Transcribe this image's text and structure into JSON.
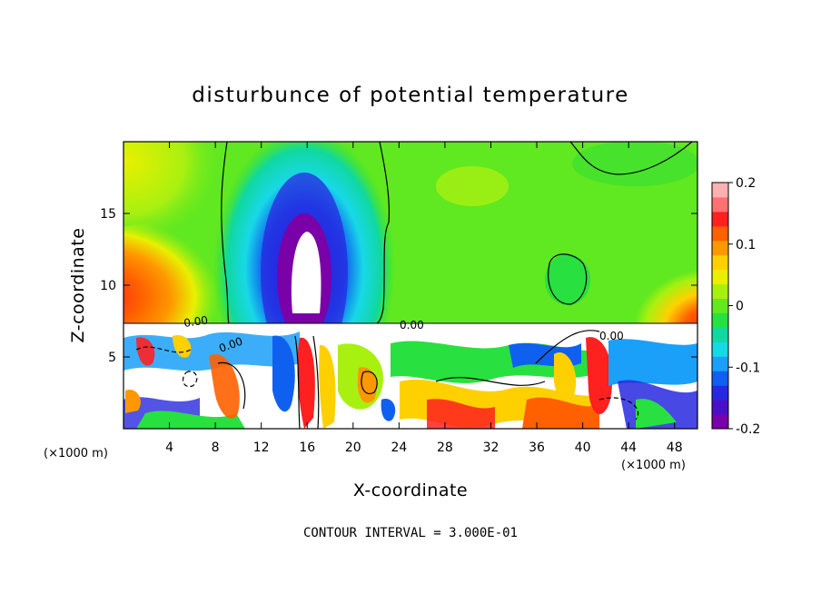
{
  "chart_data": {
    "type": "heatmap",
    "title": "disturbunce of potential temperature",
    "xlabel": "X-coordinate",
    "ylabel": "Z-coordinate",
    "x_unit_left": "(×1000 m)",
    "x_unit_right": "(×1000 m)",
    "xlim": [
      0,
      50
    ],
    "ylim": [
      0,
      20
    ],
    "x_ticks": [
      "4",
      "8",
      "12",
      "16",
      "20",
      "24",
      "28",
      "32",
      "36",
      "40",
      "44",
      "48"
    ],
    "y_ticks": [
      "5",
      "10",
      "15"
    ],
    "colorbar": {
      "range": [
        -0.2,
        0.2
      ],
      "tick_labels": [
        "0.2",
        "0.1",
        "0",
        "-0.1",
        "-0.2"
      ],
      "colors": [
        "#7a00a8",
        "#4a10c8",
        "#2828e0",
        "#1060f0",
        "#1aa0f8",
        "#18d8e8",
        "#10d8a0",
        "#28e040",
        "#60e820",
        "#a8f010",
        "#e8f000",
        "#ffd000",
        "#ff9800",
        "#ff6000",
        "#ff2020",
        "#ff7070",
        "#ffb0b0"
      ]
    },
    "contour_labels": [
      "0.00",
      "0.00",
      "0.00",
      "0.00"
    ],
    "features": [
      {
        "name": "cold-anomaly-column",
        "x_center": 16,
        "z_range": [
          7.5,
          20
        ],
        "value": -0.2
      },
      {
        "name": "warm-anomaly-left",
        "x_range": [
          0,
          8
        ],
        "z_range": [
          8,
          13
        ],
        "value": 0.15
      },
      {
        "name": "warm-anomaly-right",
        "x_range": [
          44,
          50
        ],
        "z_range": [
          7.5,
          11
        ],
        "value": 0.12
      },
      {
        "name": "turbulent-layer",
        "z_range": [
          0,
          7.5
        ],
        "value_range": [
          -0.2,
          0.2
        ]
      }
    ]
  },
  "footer": {
    "contour_interval": "CONTOUR INTERVAL = 3.000E-01"
  }
}
